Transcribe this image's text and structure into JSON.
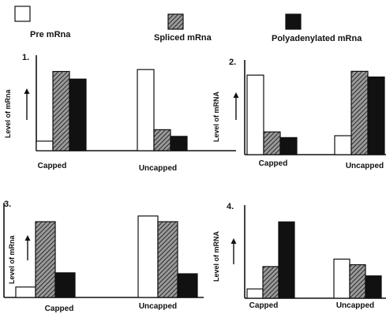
{
  "legend": [
    {
      "series": "Pre mRna",
      "label": "Pre mRna",
      "fill": "white"
    },
    {
      "series": "Spliced mRna",
      "label": "Spliced mRna",
      "fill": "hatch"
    },
    {
      "series": "Polyadenylated mRna",
      "label": "Polyadenylated mRna",
      "fill": "black"
    }
  ],
  "colors": {
    "ink": "#111111",
    "hatch_bg": "#9a9a9a",
    "hatch_line": "#2a2a2a",
    "white": "#ffffff"
  },
  "chart_data": [
    {
      "type": "bar",
      "panel_label": "1.",
      "ylabel": "Level of mRna",
      "categories": [
        "Capped",
        "Uncapped"
      ],
      "series": [
        {
          "name": "Pre mRna",
          "values": [
            10,
            85
          ]
        },
        {
          "name": "Spliced mRna",
          "values": [
            83,
            22
          ]
        },
        {
          "name": "Polyadenylated mRna",
          "values": [
            75,
            15
          ]
        }
      ],
      "ylim": [
        0,
        100
      ]
    },
    {
      "type": "bar",
      "panel_label": "2.",
      "ylabel": "Level of mRNA",
      "categories": [
        "Capped",
        "Uncapped"
      ],
      "series": [
        {
          "name": "Pre mRna",
          "values": [
            84,
            20
          ]
        },
        {
          "name": "Spliced mRna",
          "values": [
            24,
            88
          ]
        },
        {
          "name": "Polyadenylated mRna",
          "values": [
            18,
            82
          ]
        }
      ],
      "ylim": [
        0,
        100
      ]
    },
    {
      "type": "bar",
      "panel_label": "3.",
      "ylabel": "Level of mRna",
      "categories": [
        "Capped",
        "Uncapped"
      ],
      "series": [
        {
          "name": "Pre mRna",
          "values": [
            11,
            86
          ]
        },
        {
          "name": "Spliced mRna",
          "values": [
            80,
            80
          ]
        },
        {
          "name": "Polyadenylated mRna",
          "values": [
            26,
            25
          ]
        }
      ],
      "ylim": [
        0,
        100
      ]
    },
    {
      "type": "bar",
      "panel_label": "4.",
      "ylabel": "Level of mRNA",
      "categories": [
        "Capped",
        "Uncapped"
      ],
      "series": [
        {
          "name": "Pre mRna",
          "values": [
            10,
            42
          ]
        },
        {
          "name": "Spliced mRna",
          "values": [
            34,
            36
          ]
        },
        {
          "name": "Polyadenylated mRna",
          "values": [
            82,
            24
          ]
        }
      ],
      "ylim": [
        0,
        100
      ]
    }
  ]
}
